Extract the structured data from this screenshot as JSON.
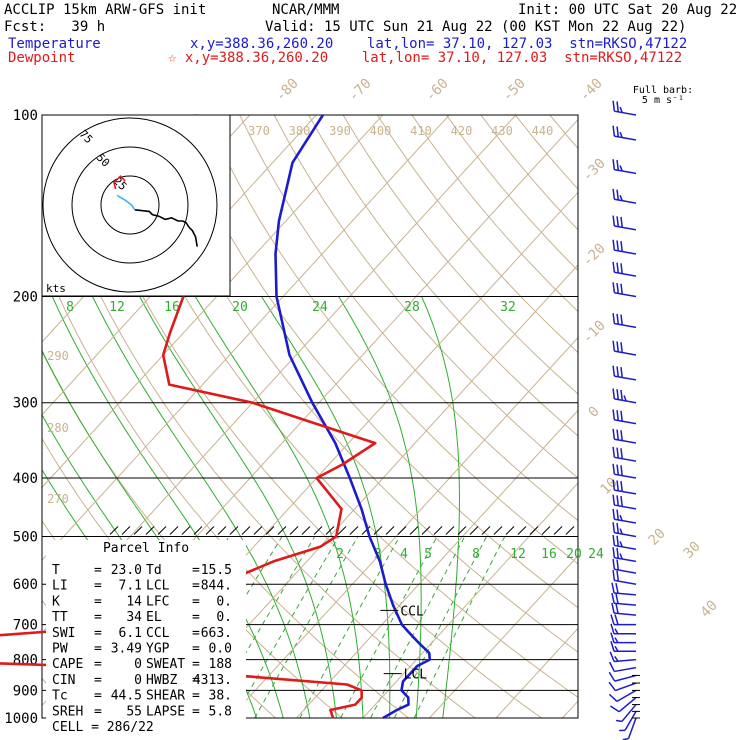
{
  "header": {
    "model": "ACCLIP 15km ARW-GFS init",
    "center": "NCAR/MMM",
    "init": "Init: 00 UTC Sat 20 Aug 22",
    "fcst": "Fcst:   39 h",
    "valid": "Valid: 15 UTC Sun 21 Aug 22 (00 KST Mon 22 Aug 22)",
    "temp_legend": "Temperature",
    "temp_info": "x,y=388.36,260.20    lat,lon= 37.10, 127.03  stn=RKSO,47122",
    "dew_legend": "Dewpoint",
    "dew_info": "☆ x,y=388.36,260.20    lat,lon= 37.10, 127.03  stn=RKSO,47122"
  },
  "wind_label": [
    "Full barb:",
    "5 m s⁻¹"
  ],
  "hodograph": {
    "units": "kts",
    "ring_labels": [
      "75",
      "50",
      "25"
    ],
    "path": [
      [
        12,
        4
      ],
      [
        14,
        6
      ],
      [
        18,
        7
      ],
      [
        22,
        9
      ],
      [
        26,
        8
      ],
      [
        30,
        10
      ],
      [
        33,
        10
      ],
      [
        35,
        11
      ],
      [
        37,
        14
      ],
      [
        39,
        16
      ],
      [
        41,
        20
      ],
      [
        42,
        26
      ]
    ],
    "low_path": [
      [
        -8,
        -6
      ],
      [
        -3,
        -3
      ],
      [
        1,
        0
      ],
      [
        3,
        3
      ]
    ],
    "low_red_path": [
      [
        -9,
        -10
      ],
      [
        -10,
        -14
      ],
      [
        -6,
        -18
      ],
      [
        -3,
        -15
      ]
    ]
  },
  "chart_data": {
    "type": "line",
    "title": "",
    "y_scale": "log-pressure",
    "pressure_ticks": [
      "100",
      "200",
      "300",
      "400",
      "500",
      "600",
      "700",
      "800",
      "900",
      "1000"
    ],
    "pressure_values": [
      100,
      200,
      300,
      400,
      500,
      600,
      700,
      800,
      900,
      1000
    ],
    "ylim": [
      1000,
      100
    ],
    "isotherm_labels": [
      "-80",
      "-70",
      "-60",
      "-50",
      "-40",
      "-30",
      "-20",
      "-10",
      "0",
      "10",
      "20",
      "30",
      "40"
    ],
    "theta_labels": [
      "370",
      "380",
      "390",
      "400",
      "410",
      "420",
      "430",
      "440"
    ],
    "theta_left_labels": [
      "290",
      "280",
      "270"
    ],
    "theta_e_labels": [
      "8",
      "12",
      "16",
      "20",
      "24",
      "28",
      "32"
    ],
    "mixing_ratio_labels": [
      "2",
      "3",
      "4",
      "5",
      "8",
      "12",
      "16",
      "20",
      "24"
    ],
    "series": [
      {
        "name": "Temperature",
        "color": "#1c1ccc",
        "pressure": [
          1000,
          970,
          950,
          925,
          900,
          870,
          850,
          820,
          800,
          780,
          750,
          720,
          700,
          650,
          600,
          550,
          500,
          450,
          400,
          350,
          300,
          250,
          200,
          170,
          150,
          120,
          100
        ],
        "temperature": [
          23,
          24,
          25,
          24,
          22,
          21,
          21,
          21,
          22,
          21,
          18,
          15,
          13,
          9,
          5,
          1,
          -4,
          -9,
          -15,
          -22,
          -31,
          -41,
          -51,
          -57,
          -61,
          -67,
          -69
        ]
      },
      {
        "name": "Dewpoint",
        "color": "#e01a1a",
        "pressure": [
          1000,
          970,
          950,
          925,
          900,
          880,
          850,
          820,
          800,
          790,
          780,
          750,
          720,
          700,
          650,
          600,
          550,
          520,
          500,
          450,
          400,
          380,
          350,
          320,
          300,
          280,
          250,
          230,
          200,
          180,
          160,
          140,
          120,
          100
        ],
        "dewpoint": [
          15.5,
          14,
          17,
          17,
          16,
          13,
          -5,
          -30,
          -60,
          -70,
          -80,
          -60,
          -40,
          -25,
          -15,
          -20,
          -15,
          -10,
          -9,
          -12,
          -20,
          -18,
          -16,
          -30,
          -40,
          -55,
          -60,
          -62,
          -65,
          -72,
          -85,
          -90,
          -90,
          -88
        ]
      }
    ],
    "parcel_markers": [
      {
        "label": "CCL",
        "pressure": 663
      },
      {
        "label": "LCL",
        "pressure": 844
      }
    ],
    "wind_barbs": {
      "pressure": [
        1000,
        975,
        950,
        925,
        900,
        875,
        850,
        825,
        800,
        775,
        750,
        725,
        700,
        675,
        650,
        625,
        600,
        575,
        550,
        525,
        500,
        475,
        450,
        425,
        400,
        375,
        350,
        325,
        300,
        275,
        250,
        225,
        200,
        185,
        170,
        155,
        140,
        125,
        110,
        100
      ],
      "speed_ms": [
        2,
        3,
        3,
        4,
        4,
        5,
        5,
        6,
        7,
        7,
        8,
        8,
        9,
        9,
        10,
        10,
        11,
        11,
        12,
        12,
        13,
        13,
        14,
        14,
        15,
        15,
        16,
        16,
        17,
        16,
        16,
        15,
        15,
        15,
        14,
        14,
        13,
        13,
        12,
        12
      ],
      "direction_deg": [
        200,
        210,
        220,
        230,
        240,
        250,
        255,
        260,
        265,
        270,
        270,
        270,
        270,
        275,
        275,
        275,
        280,
        280,
        280,
        280,
        280,
        280,
        280,
        280,
        280,
        280,
        280,
        280,
        280,
        280,
        280,
        280,
        280,
        280,
        280,
        280,
        280,
        280,
        280,
        280
      ]
    }
  },
  "parcel_info": {
    "title": "Parcel Info",
    "rows": [
      {
        "l": "T",
        "lv": "23.0",
        "r": "Td",
        "rv": "15.5"
      },
      {
        "l": "LI",
        "lv": "7.1",
        "r": "LCL",
        "rv": "844."
      },
      {
        "l": "K",
        "lv": "14",
        "r": "LFC",
        "rv": "0."
      },
      {
        "l": "TT",
        "lv": "34",
        "r": "EL",
        "rv": "0."
      },
      {
        "l": "SWI",
        "lv": "6.1",
        "r": "CCL",
        "rv": "663."
      },
      {
        "l": "PW",
        "lv": "3.49",
        "r": "YGP",
        "rv": "0.0"
      },
      {
        "l": "CAPE",
        "lv": "0",
        "r": "SWEAT",
        "rv": "188"
      },
      {
        "l": "CIN",
        "lv": "0",
        "r": "HWBZ",
        "rv": "4313."
      },
      {
        "l": "Tc",
        "lv": "44.5",
        "r": "SHEAR",
        "rv": "38."
      },
      {
        "l": "SREH",
        "lv": "55",
        "r": "LAPSE",
        "rv": "5.8"
      }
    ],
    "cell": "CELL = 286/22"
  }
}
